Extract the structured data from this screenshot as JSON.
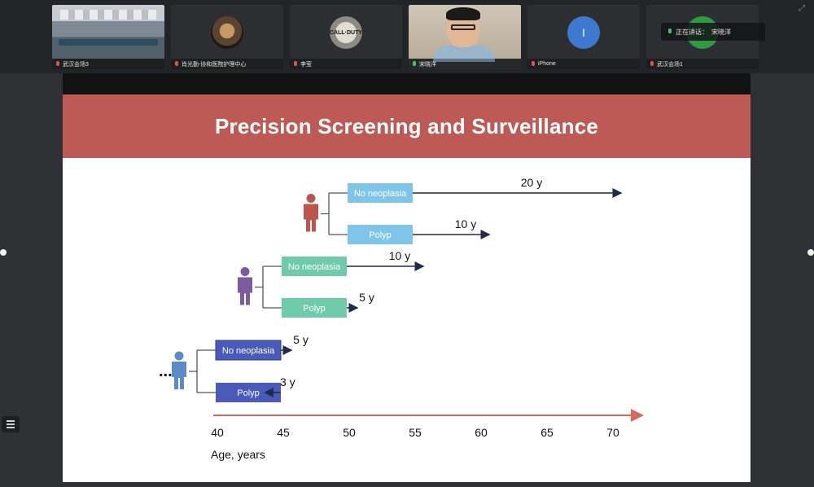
{
  "participants": [
    {
      "name": "武汉会场3",
      "type": "room",
      "mic": "muted"
    },
    {
      "name": "肖光勤-协和医院护理中心",
      "type": "room-avatar",
      "mic": "muted"
    },
    {
      "name": "李莹",
      "type": "cod-avatar",
      "mic": "muted"
    },
    {
      "name": "宋晓洋",
      "type": "camera",
      "mic": "active"
    },
    {
      "name": "iPhone",
      "type": "letter",
      "initial": "I",
      "mic": "muted"
    },
    {
      "name": "武汉会场1",
      "type": "green-avatar",
      "mic": "muted"
    }
  ],
  "speaking_indicator": {
    "label": "正在讲话：",
    "speaker": "宋晓洋"
  },
  "icons": {
    "expand": "expand-icon",
    "list": "list-icon",
    "mic": "mic-icon",
    "person": "person-icon"
  },
  "colors": {
    "header": "#bd5a55",
    "light_blue": "#7fc5ea",
    "teal": "#6fcbaa",
    "indigo": "#4a5ab8",
    "person_red": "#b9574d",
    "person_purple": "#7b5a9d",
    "person_blue": "#5b8ac4",
    "axis": "#d46a5e"
  },
  "slide": {
    "title": "Precision Screening and Surveillance",
    "ellipsis": "...",
    "axis_label": "Age, years",
    "axis_ticks": [
      40,
      45,
      50,
      55,
      60,
      65,
      70
    ],
    "tiers": [
      {
        "start_age": 50,
        "color": "light_blue",
        "branches": [
          {
            "label": "No neoplasia",
            "interval": "20 y",
            "years": 20
          },
          {
            "label": "Polyp",
            "interval": "10 y",
            "years": 10
          }
        ]
      },
      {
        "start_age": 45,
        "color": "teal",
        "branches": [
          {
            "label": "No neoplasia",
            "interval": "10 y",
            "years": 10
          },
          {
            "label": "Polyp",
            "interval": "5 y",
            "years": 5
          }
        ]
      },
      {
        "start_age": 40,
        "color": "indigo",
        "branches": [
          {
            "label": "No neoplasia",
            "interval": "5 y",
            "years": 5
          },
          {
            "label": "Polyp",
            "interval": "3 y",
            "years": 3
          }
        ]
      }
    ]
  }
}
